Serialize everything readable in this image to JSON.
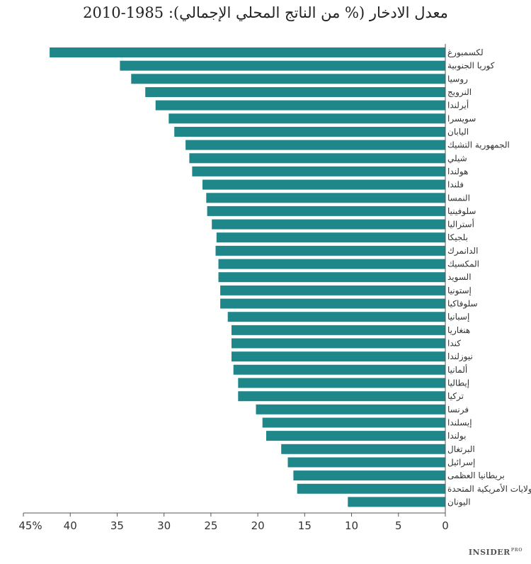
{
  "chart_data": {
    "type": "bar",
    "orientation": "horizontal",
    "title": "معدل الادخار (% من الناتج المحلي الإجمالي): 1985-2010",
    "xlim": [
      0,
      45
    ],
    "x_reversed": true,
    "ticks": [
      0,
      5,
      10,
      15,
      20,
      25,
      30,
      35,
      40,
      45
    ],
    "tick_labels": [
      "0",
      "5",
      "10",
      "15",
      "20",
      "25",
      "30",
      "35",
      "40",
      "45%"
    ],
    "categories": [
      "لكسمبورغ",
      "كوريا الجنوبية",
      "روسيا",
      "النرويج",
      "أيرلندا",
      "سويسرا",
      "اليابان",
      "الجمهورية التشيك",
      "شيلي",
      "هولندا",
      "فلندا",
      "النمسا",
      "سلوفينيا",
      "أستراليا",
      "بلجيكا",
      "الدانمرك",
      "المكسيك",
      "السويد",
      "إستونيا",
      "سلوفاكيا",
      "إسبانيا",
      "هنغاريا",
      "كندا",
      "نيوزلندا",
      "ألمانيا",
      "إيطاليا",
      "تركيا",
      "فرنسا",
      "إيسلندا",
      "بولندا",
      "البرتغال",
      "إسرائيل",
      "بريطانيا العظمى",
      "الولايات الأمريكية المتحدة",
      "اليونان"
    ],
    "values": [
      42.2,
      34.7,
      33.5,
      32.0,
      30.9,
      29.5,
      28.9,
      27.7,
      27.3,
      27.0,
      25.9,
      25.5,
      25.4,
      24.9,
      24.4,
      24.5,
      24.2,
      24.2,
      24.0,
      24.0,
      23.2,
      22.8,
      22.8,
      22.8,
      22.6,
      22.1,
      22.1,
      20.2,
      19.5,
      19.1,
      17.5,
      16.8,
      16.2,
      15.8,
      10.4
    ],
    "colors": {
      "bar": "#1f878a"
    },
    "grid": false,
    "legend": "none"
  },
  "brand": {
    "name": "INSIDER",
    "sup": "PRO"
  }
}
